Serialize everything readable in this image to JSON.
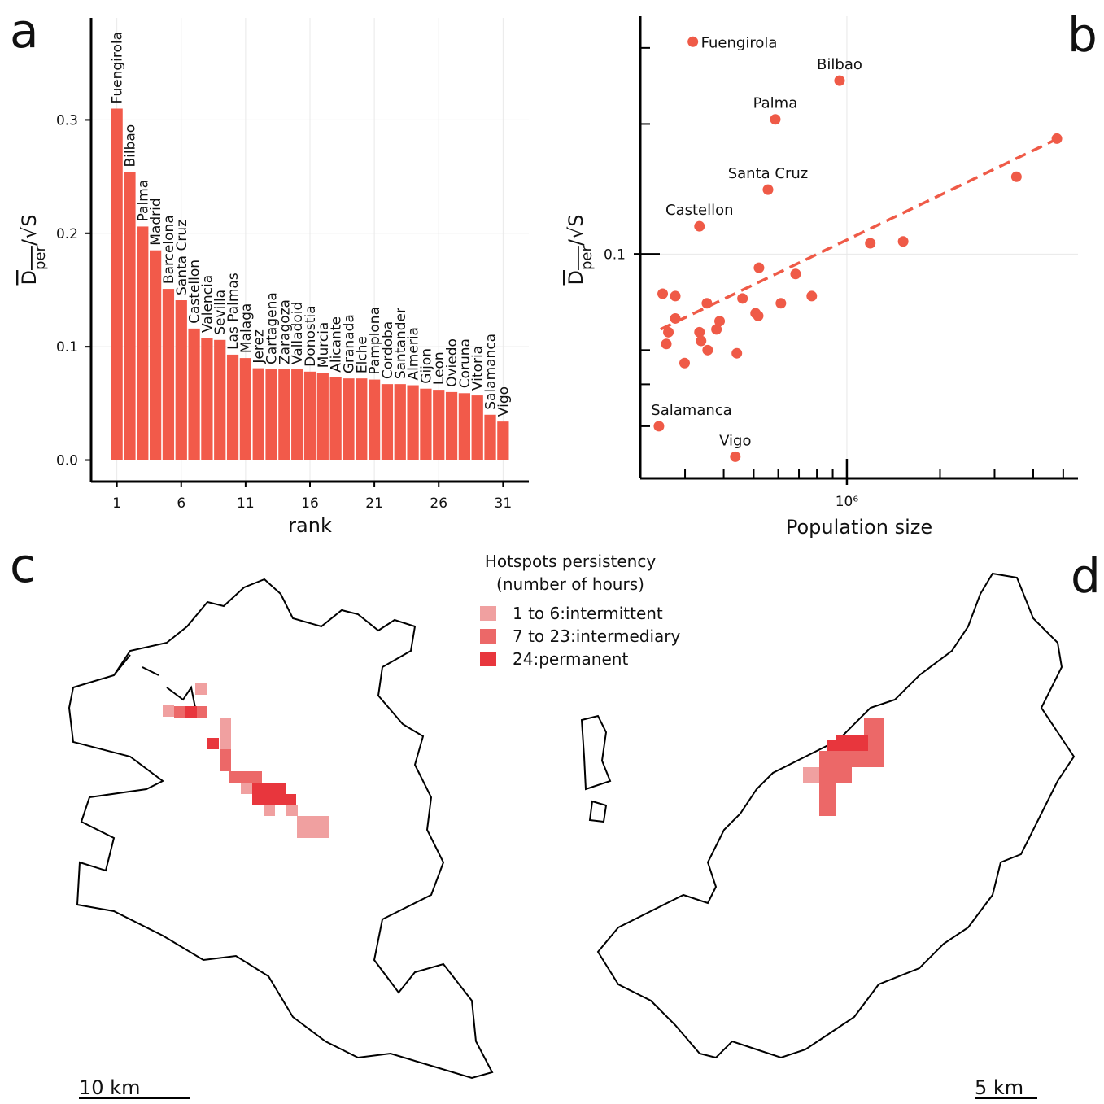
{
  "panel_labels": [
    "a",
    "b",
    "c",
    "d"
  ],
  "chart_data": [
    {
      "type": "bar",
      "color": "#f25a4a",
      "x": [
        1,
        2,
        3,
        4,
        5,
        6,
        7,
        8,
        9,
        10,
        11,
        12,
        13,
        14,
        15,
        16,
        17,
        18,
        19,
        20,
        21,
        22,
        23,
        24,
        25,
        26,
        27,
        28,
        29,
        30,
        31
      ],
      "labels": [
        "Fuengirola",
        "Bilbao",
        "Palma",
        "Madrid",
        "Barcelona",
        "Santa Cruz",
        "Castellon",
        "Valencia",
        "Sevilla",
        "Las Palmas",
        "Malaga",
        "Jerez",
        "Cartagena",
        "Zaragoza",
        "Valladoid",
        "Donostia",
        "Murcia",
        "Alicante",
        "Granada",
        "Elche",
        "Pamplona",
        "Cordoba",
        "Santander",
        "Almeria",
        "Gijon",
        "Leon",
        "Oviedo",
        "Coruna",
        "Vitoria",
        "Salamanca",
        "Vigo"
      ],
      "values": [
        0.31,
        0.254,
        0.206,
        0.185,
        0.151,
        0.141,
        0.116,
        0.108,
        0.106,
        0.093,
        0.09,
        0.081,
        0.08,
        0.08,
        0.08,
        0.078,
        0.077,
        0.073,
        0.072,
        0.072,
        0.071,
        0.067,
        0.067,
        0.066,
        0.063,
        0.062,
        0.06,
        0.059,
        0.057,
        0.04,
        0.034
      ],
      "xlim": [
        -1,
        33
      ],
      "xticks": [
        1,
        6,
        11,
        16,
        21,
        26,
        31
      ],
      "ylim": [
        -0.019,
        0.39
      ],
      "yticks": [
        {
          "value": 0,
          "label": "0.0"
        },
        0.1,
        0.2,
        0.3
      ],
      "xlabel": "rank",
      "ylabel": [
        "D",
        "per",
        "/√S"
      ],
      "grid": true
    },
    {
      "type": "scatter",
      "color": "#ef5a47",
      "log_x": true,
      "log_y": true,
      "x": [
        318000,
        947000,
        587000,
        556000,
        334000,
        247000,
        436000,
        4770000,
        3530000,
        1520000,
        1190000,
        520000,
        683000,
        254000,
        279000,
        353000,
        460000,
        770000,
        612000,
        507000,
        517000,
        279000,
        388000,
        265000,
        334000,
        379000,
        338000,
        261000,
        355000,
        441000,
        299000
      ],
      "y": [
        0.31,
        0.252,
        0.205,
        0.141,
        0.116,
        0.04,
        0.034,
        0.185,
        0.151,
        0.107,
        0.106,
        0.093,
        0.09,
        0.081,
        0.08,
        0.077,
        0.079,
        0.08,
        0.077,
        0.073,
        0.072,
        0.071,
        0.07,
        0.066,
        0.066,
        0.067,
        0.063,
        0.062,
        0.06,
        0.059,
        0.056
      ],
      "labels": [
        "Fuengirola",
        "Bilbao",
        "Palma",
        "Santa Cruz",
        "Castellon",
        "Salamanca",
        "Vigo",
        null,
        null,
        null,
        null,
        null,
        null,
        null,
        null,
        null,
        null,
        null,
        null,
        null,
        null,
        null,
        null,
        null,
        null,
        null,
        null,
        null,
        null,
        null,
        null
      ],
      "fit": {
        "x": [
          250000,
          4800000
        ],
        "y": [
          0.067,
          0.185
        ]
      },
      "xlim": [
        215000,
        5580000
      ],
      "xticks": [
        {
          "value": 1000000,
          "label": "10⁶"
        }
      ],
      "xminorticks": [
        300000,
        400000,
        500000,
        600000,
        700000,
        800000,
        900000,
        2000000,
        3000000,
        4000000,
        5000000
      ],
      "ylim": [
        0.0303,
        0.355
      ],
      "yticks": [
        0.1
      ],
      "yminorticks": [
        0.04,
        0.05,
        0.06,
        0.2,
        0.3
      ],
      "xlabel": "Population size",
      "ylabel": [
        "D",
        "per",
        "/√S"
      ],
      "grid": true
    }
  ],
  "maps": {
    "legend": {
      "title": [
        "Hotspots persistency",
        "(number of hours)"
      ],
      "entries": [
        {
          "label": "1 to 6:intermittent",
          "color": "#f0a0a0"
        },
        {
          "label": "7 to 23:intermediary",
          "color": "#ec6868"
        },
        {
          "label": "24:permanent",
          "color": "#e8363d"
        }
      ]
    },
    "scale_bars": [
      "10 km",
      "5 km"
    ]
  }
}
